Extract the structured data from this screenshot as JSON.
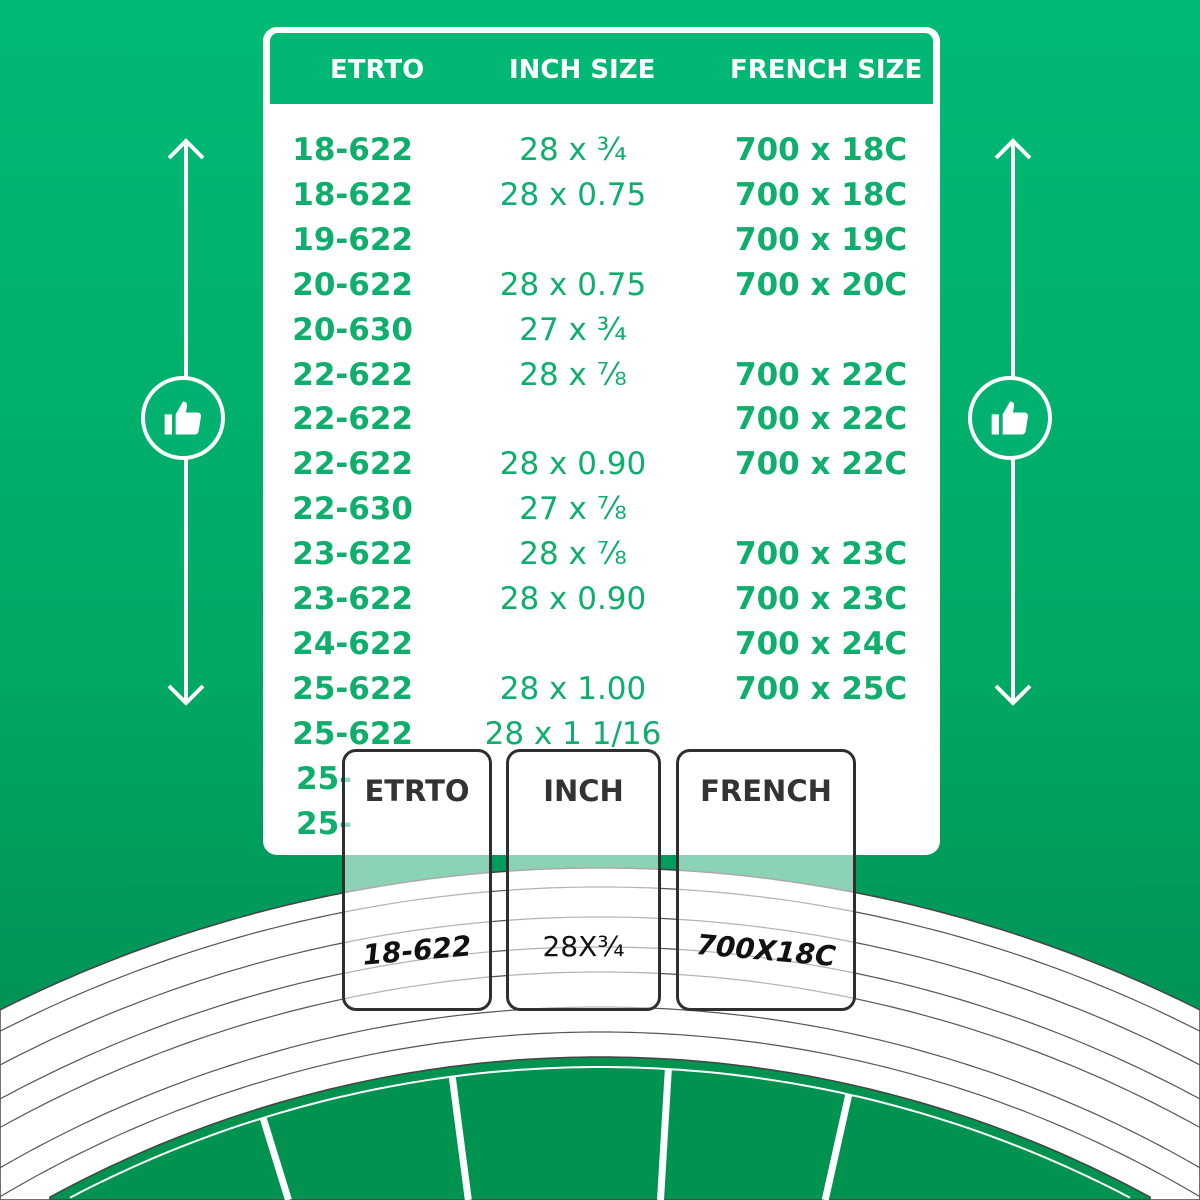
{
  "table": {
    "headers": [
      "ETRTO",
      "INCH SIZE",
      "FRENCH SIZE"
    ],
    "rows": [
      [
        "18-622",
        "28 x ¾",
        "700 x 18C"
      ],
      [
        "18-622",
        "28 x 0.75",
        "700 x 18C"
      ],
      [
        "19-622",
        "",
        "700 x 19C"
      ],
      [
        "20-622",
        "28 x 0.75",
        "700 x 20C"
      ],
      [
        "20-630",
        "27 x ¾",
        ""
      ],
      [
        "22-622",
        "28 x ⅞",
        "700 x 22C"
      ],
      [
        "22-622",
        "",
        "700 x 22C"
      ],
      [
        "22-622",
        "28 x 0.90",
        "700 x 22C"
      ],
      [
        "22-630",
        "27 x ⅞",
        ""
      ],
      [
        "23-622",
        "28 x ⅞",
        "700 x 23C"
      ],
      [
        "23-622",
        "28 x 0.90",
        "700 x 23C"
      ],
      [
        "24-622",
        "",
        "700 x 24C"
      ],
      [
        "25-622",
        "28 x 1.00",
        "700 x 25C"
      ],
      [
        "25-622",
        "28 x 1 1/16",
        ""
      ],
      [
        "25-",
        "",
        ""
      ],
      [
        "25-",
        "",
        ""
      ]
    ]
  },
  "labels": [
    {
      "title": "ETRTO",
      "value": "18-622"
    },
    {
      "title": "INCH",
      "value": "28X¾"
    },
    {
      "title": "FRENCH",
      "value": "700X18C"
    }
  ],
  "icons": {
    "side": "thumbs-up-icon",
    "arrows": "double-arrow-vertical-icon"
  },
  "colors": {
    "accent": "#00b873",
    "text": "#0fae6c",
    "outline": "#2f2f2f"
  }
}
